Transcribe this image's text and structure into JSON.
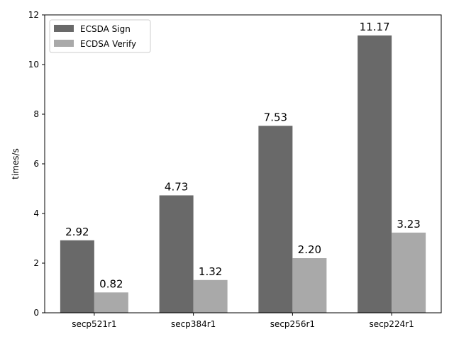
{
  "chart_data": {
    "type": "bar",
    "title": "",
    "xlabel": "",
    "ylabel": "times/s",
    "ylim": [
      0,
      12
    ],
    "yticks": [
      0,
      2,
      4,
      6,
      8,
      10,
      12
    ],
    "categories": [
      "secp521r1",
      "secp384r1",
      "secp256r1",
      "secp224r1"
    ],
    "series": [
      {
        "name": "ECSDA Sign",
        "color": "#696969",
        "values": [
          2.92,
          4.73,
          7.53,
          11.17
        ],
        "labels": [
          "2.92",
          "4.73",
          "7.53",
          "11.17"
        ]
      },
      {
        "name": "ECDSA Verify",
        "color": "#a9a9a9",
        "values": [
          0.82,
          1.32,
          2.2,
          3.23
        ],
        "labels": [
          "0.82",
          "1.32",
          "2.20",
          "3.23"
        ]
      }
    ],
    "legend": "top-left",
    "grid": false
  }
}
